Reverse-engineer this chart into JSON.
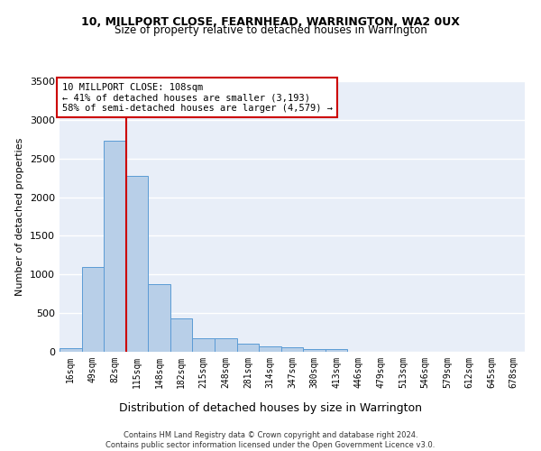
{
  "title1": "10, MILLPORT CLOSE, FEARNHEAD, WARRINGTON, WA2 0UX",
  "title2": "Size of property relative to detached houses in Warrington",
  "xlabel": "Distribution of detached houses by size in Warrington",
  "ylabel": "Number of detached properties",
  "categories": [
    "16sqm",
    "49sqm",
    "82sqm",
    "115sqm",
    "148sqm",
    "182sqm",
    "215sqm",
    "248sqm",
    "281sqm",
    "314sqm",
    "347sqm",
    "380sqm",
    "413sqm",
    "446sqm",
    "479sqm",
    "513sqm",
    "546sqm",
    "579sqm",
    "612sqm",
    "645sqm",
    "678sqm"
  ],
  "values": [
    50,
    1100,
    2730,
    2280,
    880,
    430,
    170,
    170,
    100,
    65,
    55,
    35,
    30,
    0,
    0,
    0,
    0,
    0,
    0,
    0,
    0
  ],
  "bar_color": "#b8cfe8",
  "bar_edgecolor": "#5b9bd5",
  "vline_x": 2.5,
  "vline_color": "#cc0000",
  "annotation_text": "10 MILLPORT CLOSE: 108sqm\n← 41% of detached houses are smaller (3,193)\n58% of semi-detached houses are larger (4,579) →",
  "annotation_box_color": "#cc0000",
  "annotation_box_facecolor": "white",
  "ylim": [
    0,
    3500
  ],
  "yticks": [
    0,
    500,
    1000,
    1500,
    2000,
    2500,
    3000,
    3500
  ],
  "background_color": "#e8eef8",
  "grid_color": "#ffffff",
  "footer1": "Contains HM Land Registry data © Crown copyright and database right 2024.",
  "footer2": "Contains public sector information licensed under the Open Government Licence v3.0."
}
